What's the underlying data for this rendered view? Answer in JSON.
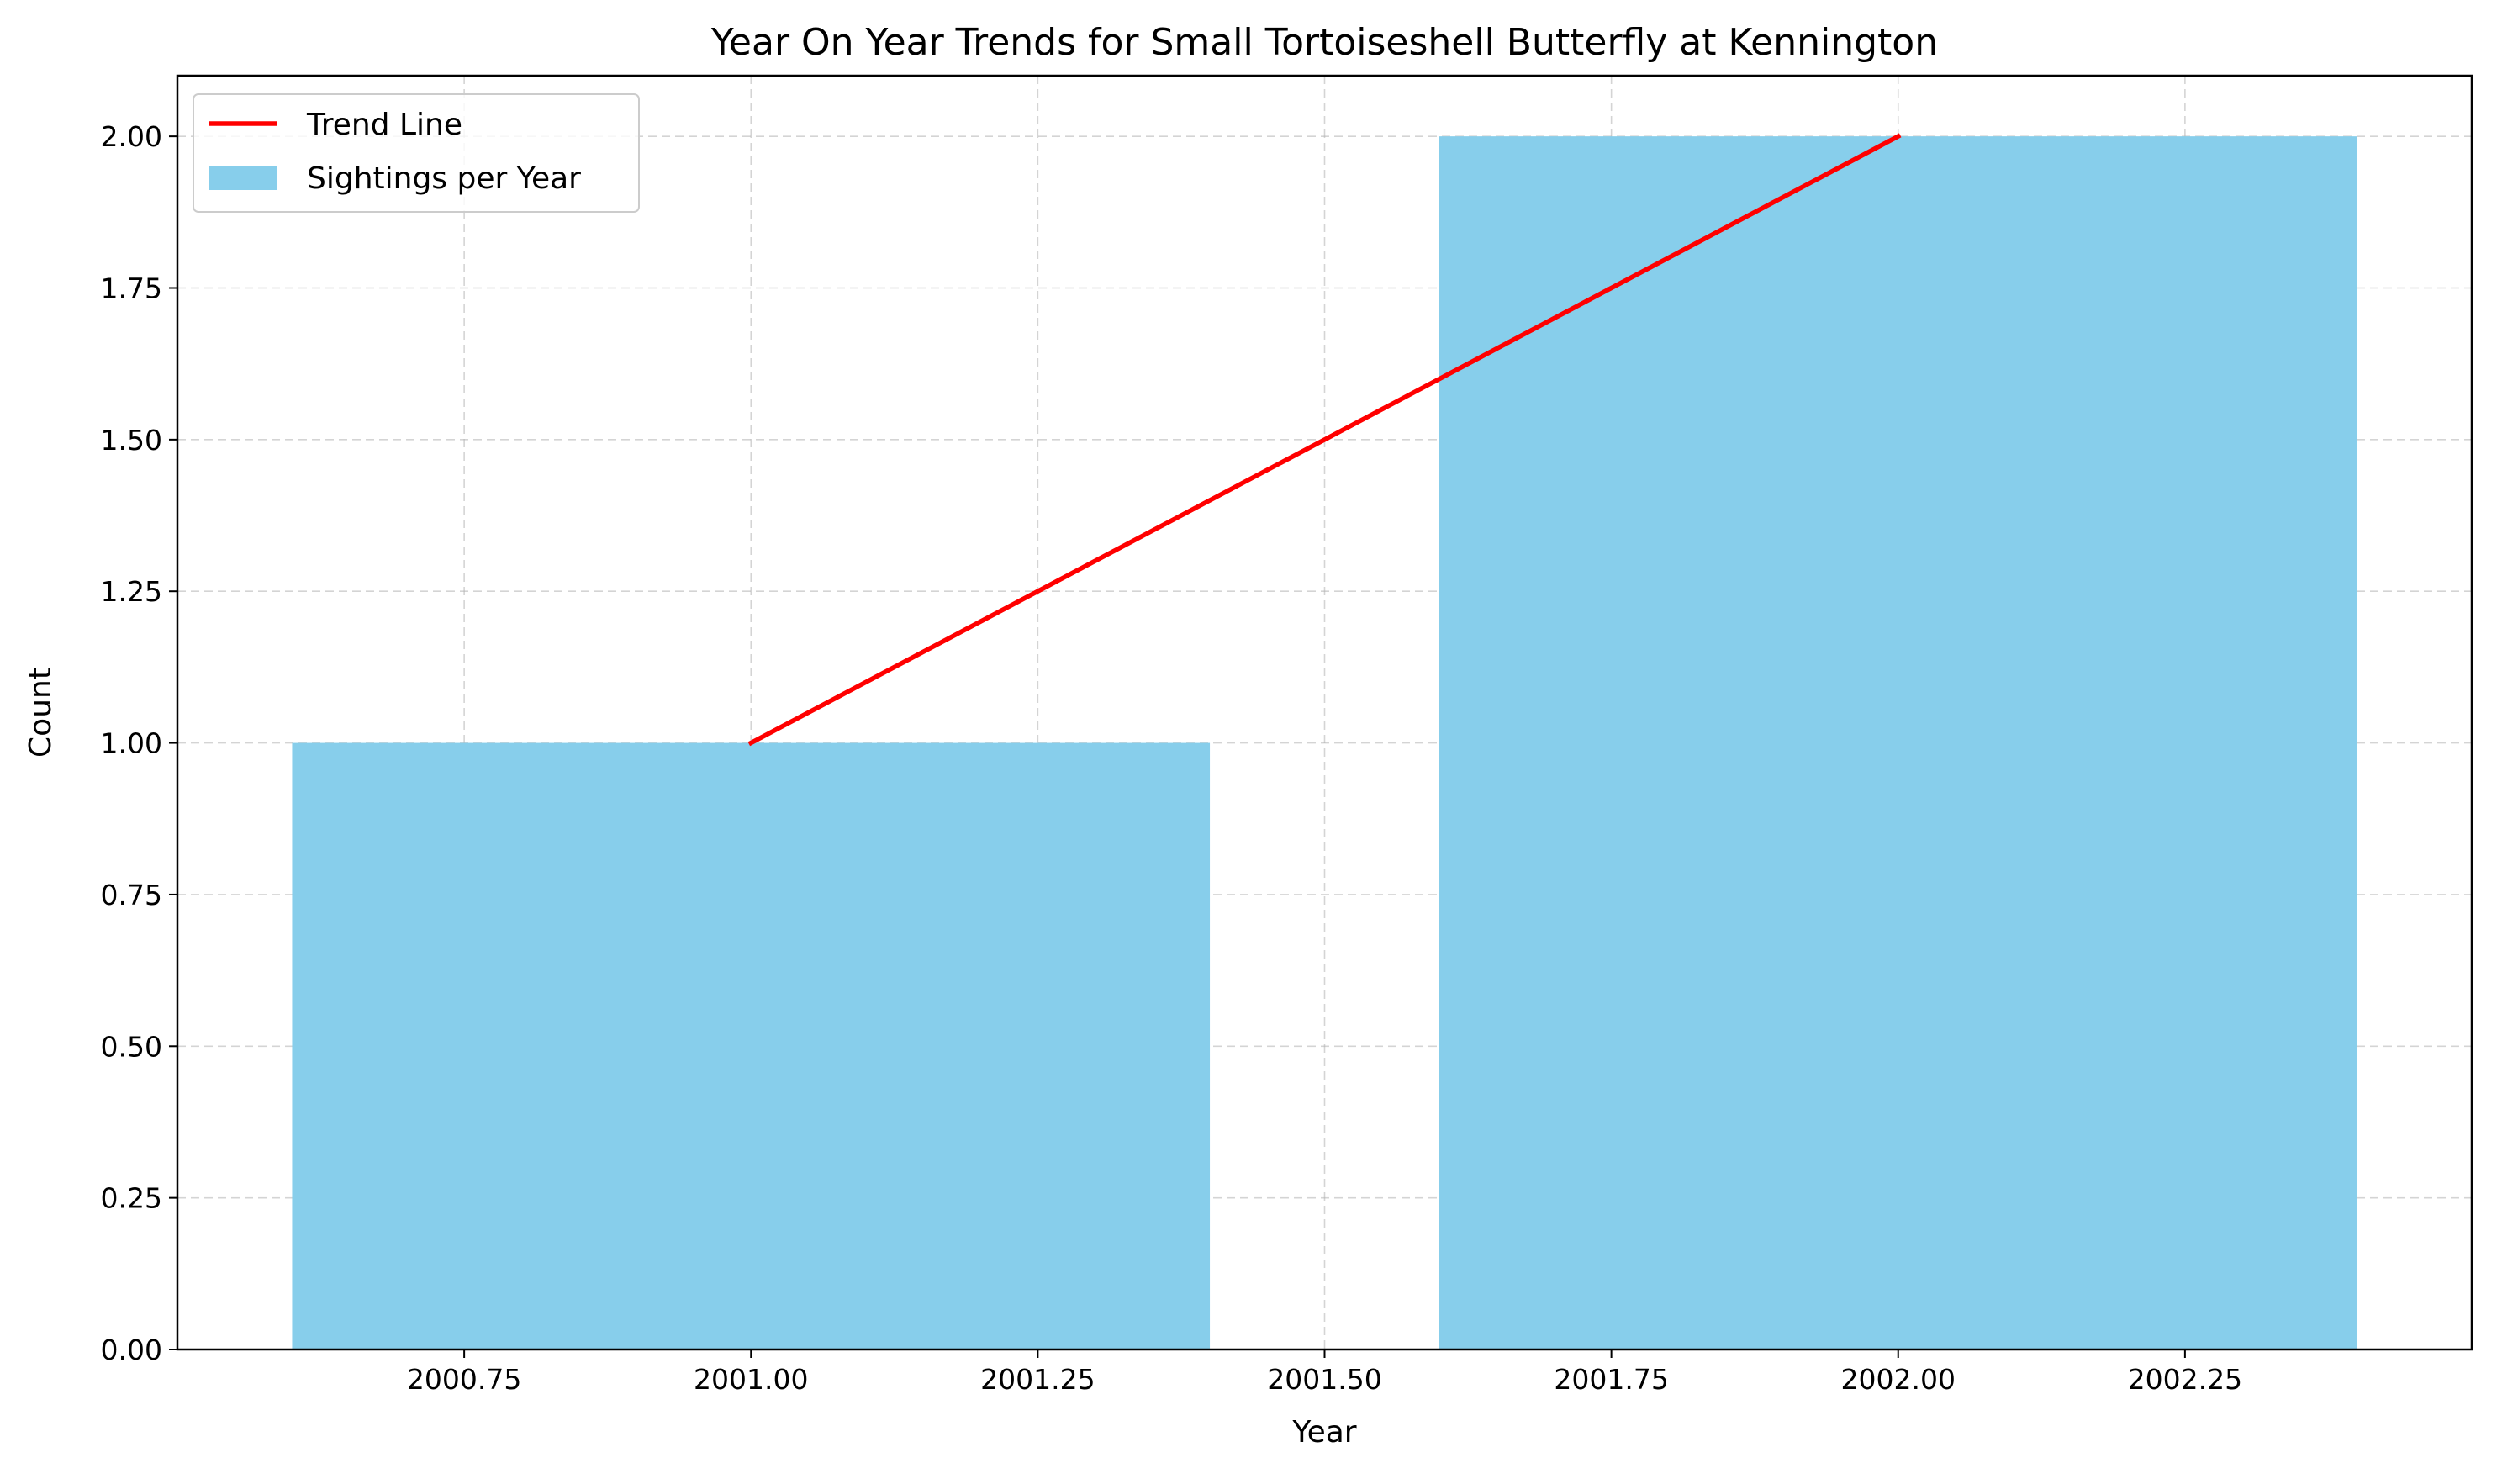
{
  "chart_data": {
    "type": "bar",
    "title": "Year On Year Trends for Small Tortoiseshell Butterfly at Kennington",
    "xlabel": "Year",
    "ylabel": "Count",
    "xlim": [
      2000.5,
      2002.5
    ],
    "ylim": [
      0,
      2.1
    ],
    "grid": true,
    "legend_position": "top-left",
    "bar_width": 0.8,
    "series": [
      {
        "name": "Sightings per Year",
        "kind": "bar",
        "color": "#87ceeb",
        "x": [
          2001,
          2002
        ],
        "values": [
          1,
          2
        ]
      },
      {
        "name": "Trend Line",
        "kind": "line",
        "color": "#ff0000",
        "x": [
          2001,
          2002
        ],
        "values": [
          1,
          2
        ]
      }
    ],
    "x_ticks": [
      "2000.75",
      "2001.00",
      "2001.25",
      "2001.50",
      "2001.75",
      "2002.00",
      "2002.25"
    ],
    "y_ticks": [
      "0.00",
      "0.25",
      "0.50",
      "0.75",
      "1.00",
      "1.25",
      "1.50",
      "1.75",
      "2.00"
    ]
  }
}
